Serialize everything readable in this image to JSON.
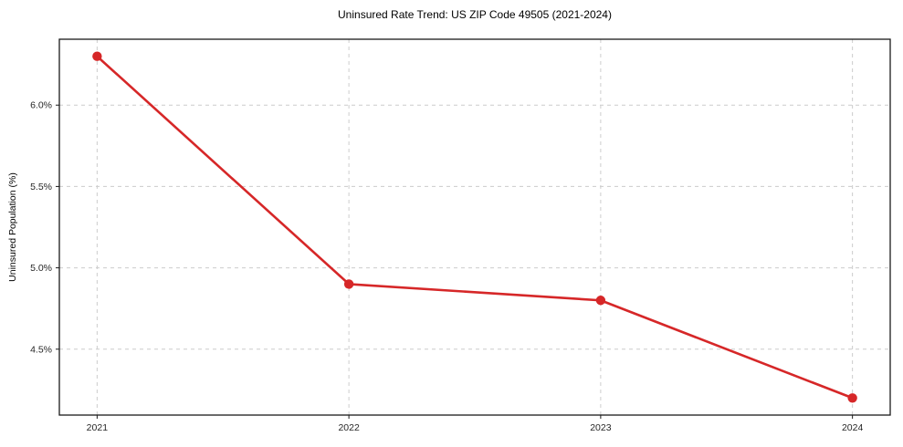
{
  "chart_data": {
    "type": "line",
    "title": "Uninsured Rate Trend: US ZIP Code 49505 (2021-2024)",
    "xlabel": "",
    "ylabel": "Uninsured Population (%)",
    "x": [
      2021,
      2022,
      2023,
      2024
    ],
    "x_tick_labels": [
      "2021",
      "2022",
      "2023",
      "2024"
    ],
    "series": [
      {
        "name": "Uninsured rate",
        "values": [
          6.3,
          4.9,
          4.8,
          4.2
        ]
      }
    ],
    "y_tick_values": [
      4.5,
      5.0,
      5.5,
      6.0
    ],
    "y_tick_labels": [
      "4.5%",
      "5.0%",
      "5.5%",
      "6.0%"
    ],
    "xlim": [
      2020.85,
      2024.15
    ],
    "ylim": [
      4.095,
      6.405
    ],
    "grid": true,
    "legend_position": "none",
    "line_color": "#d62728",
    "grid_color": "#cccccc",
    "axis_color": "#1a1a1a",
    "marker": "circle"
  }
}
